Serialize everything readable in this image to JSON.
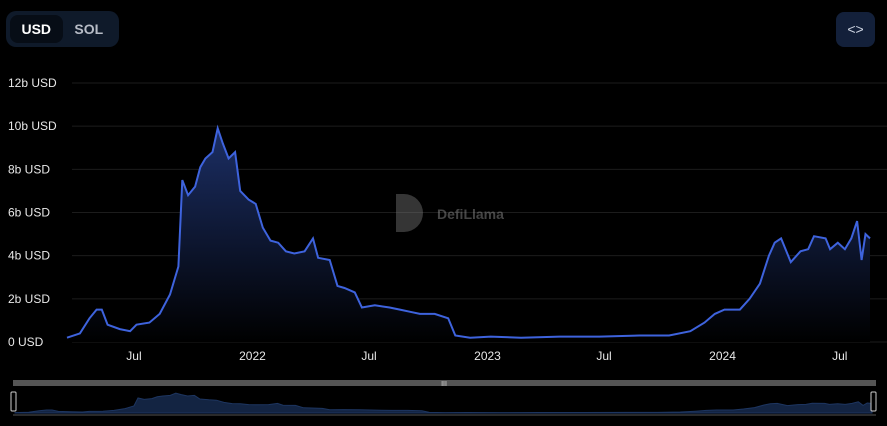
{
  "currency_toggle": {
    "options": [
      "USD",
      "SOL"
    ],
    "selected": "USD"
  },
  "embed_button": {
    "icon": "code-brackets-icon",
    "label": "<>"
  },
  "watermark": "DefiLlama",
  "colors": {
    "line": "#3e63dd",
    "area_top": "#1c2f66",
    "area_bottom": "#000000",
    "grid": "#222222",
    "brush": "#555555",
    "brush_area": "#132442"
  },
  "chart_data": {
    "type": "area",
    "title": "",
    "xlabel": "",
    "ylabel": "",
    "ylim": [
      0,
      12
    ],
    "y_unit": "b USD",
    "y_ticks": [
      "0 USD",
      "2b USD",
      "4b USD",
      "6b USD",
      "8b USD",
      "10b USD",
      "12b USD"
    ],
    "y_tick_values": [
      0,
      2,
      4,
      6,
      8,
      10,
      12
    ],
    "x_ticks": [
      {
        "label": "Jul",
        "date": "2021-07-01"
      },
      {
        "label": "2022",
        "date": "2022-01-01"
      },
      {
        "label": "Jul",
        "date": "2022-07-01"
      },
      {
        "label": "2023",
        "date": "2023-01-01"
      },
      {
        "label": "Jul",
        "date": "2023-07-01"
      },
      {
        "label": "2024",
        "date": "2024-01-01"
      },
      {
        "label": "Jul",
        "date": "2024-07-01"
      }
    ],
    "xlim": [
      "2021-03-19",
      "2024-08-17"
    ],
    "grid": true,
    "points": [
      [
        "2021-03-19",
        0.2
      ],
      [
        "2021-04-08",
        0.4
      ],
      [
        "2021-04-23",
        1.1
      ],
      [
        "2021-05-04",
        1.5
      ],
      [
        "2021-05-12",
        1.5
      ],
      [
        "2021-05-21",
        0.8
      ],
      [
        "2021-06-09",
        0.6
      ],
      [
        "2021-06-25",
        0.5
      ],
      [
        "2021-07-05",
        0.8
      ],
      [
        "2021-07-25",
        0.9
      ],
      [
        "2021-08-10",
        1.3
      ],
      [
        "2021-08-26",
        2.2
      ],
      [
        "2021-09-08",
        3.5
      ],
      [
        "2021-09-14",
        7.5
      ],
      [
        "2021-09-23",
        6.8
      ],
      [
        "2021-10-04",
        7.2
      ],
      [
        "2021-10-12",
        8.1
      ],
      [
        "2021-10-20",
        8.5
      ],
      [
        "2021-10-31",
        8.8
      ],
      [
        "2021-11-08",
        9.9
      ],
      [
        "2021-11-16",
        9.2
      ],
      [
        "2021-11-25",
        8.5
      ],
      [
        "2021-12-05",
        8.8
      ],
      [
        "2021-12-13",
        7.0
      ],
      [
        "2021-12-26",
        6.6
      ],
      [
        "2022-01-06",
        6.4
      ],
      [
        "2022-01-17",
        5.3
      ],
      [
        "2022-01-29",
        4.7
      ],
      [
        "2022-02-10",
        4.6
      ],
      [
        "2022-02-22",
        4.2
      ],
      [
        "2022-03-07",
        4.1
      ],
      [
        "2022-03-23",
        4.2
      ],
      [
        "2022-04-05",
        4.8
      ],
      [
        "2022-04-13",
        3.9
      ],
      [
        "2022-05-01",
        3.8
      ],
      [
        "2022-05-13",
        2.6
      ],
      [
        "2022-05-24",
        2.5
      ],
      [
        "2022-06-09",
        2.3
      ],
      [
        "2022-06-20",
        1.6
      ],
      [
        "2022-07-10",
        1.7
      ],
      [
        "2022-08-02",
        1.6
      ],
      [
        "2022-08-18",
        1.5
      ],
      [
        "2022-09-03",
        1.4
      ],
      [
        "2022-09-18",
        1.3
      ],
      [
        "2022-10-11",
        1.3
      ],
      [
        "2022-11-01",
        1.1
      ],
      [
        "2022-11-12",
        0.3
      ],
      [
        "2022-12-05",
        0.2
      ],
      [
        "2023-01-06",
        0.25
      ],
      [
        "2023-02-22",
        0.2
      ],
      [
        "2023-04-23",
        0.25
      ],
      [
        "2023-06-24",
        0.25
      ],
      [
        "2023-08-25",
        0.3
      ],
      [
        "2023-10-10",
        0.3
      ],
      [
        "2023-11-12",
        0.5
      ],
      [
        "2023-12-04",
        0.9
      ],
      [
        "2023-12-20",
        1.3
      ],
      [
        "2024-01-04",
        1.5
      ],
      [
        "2024-01-28",
        1.5
      ],
      [
        "2024-02-12",
        2.0
      ],
      [
        "2024-02-28",
        2.7
      ],
      [
        "2024-03-13",
        4.0
      ],
      [
        "2024-03-22",
        4.6
      ],
      [
        "2024-04-01",
        4.8
      ],
      [
        "2024-04-16",
        3.7
      ],
      [
        "2024-05-01",
        4.2
      ],
      [
        "2024-05-13",
        4.3
      ],
      [
        "2024-05-22",
        4.9
      ],
      [
        "2024-06-09",
        4.8
      ],
      [
        "2024-06-16",
        4.3
      ],
      [
        "2024-06-28",
        4.6
      ],
      [
        "2024-07-09",
        4.3
      ],
      [
        "2024-07-19",
        4.8
      ],
      [
        "2024-07-28",
        5.6
      ],
      [
        "2024-08-04",
        3.8
      ],
      [
        "2024-08-10",
        5.0
      ],
      [
        "2024-08-17",
        4.8
      ]
    ]
  }
}
